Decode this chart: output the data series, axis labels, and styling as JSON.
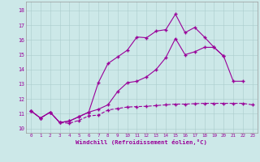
{
  "xlabel": "Windchill (Refroidissement éolien,°C)",
  "background_color": "#cce8e8",
  "line_color": "#990099",
  "xlim": [
    -0.5,
    23.5
  ],
  "ylim": [
    9.7,
    18.6
  ],
  "yticks": [
    10,
    11,
    12,
    13,
    14,
    15,
    16,
    17,
    18
  ],
  "xticks": [
    0,
    1,
    2,
    3,
    4,
    5,
    6,
    7,
    8,
    9,
    10,
    11,
    12,
    13,
    14,
    15,
    16,
    17,
    18,
    19,
    20,
    21,
    22,
    23
  ],
  "series1_x": [
    0,
    1,
    2,
    3,
    4,
    5,
    6,
    7,
    8,
    9,
    10,
    11,
    12,
    13,
    14,
    15,
    16,
    17,
    18,
    19,
    20,
    21,
    22,
    23
  ],
  "series1_y": [
    11.2,
    10.7,
    11.1,
    10.4,
    10.35,
    10.55,
    10.85,
    10.9,
    11.25,
    11.35,
    11.45,
    11.48,
    11.5,
    11.55,
    11.6,
    11.65,
    11.65,
    11.68,
    11.7,
    11.7,
    11.7,
    11.7,
    11.7,
    11.6
  ],
  "series2_x": [
    0,
    1,
    2,
    3,
    4,
    5,
    6,
    7,
    8,
    9,
    10,
    11,
    12,
    13,
    14,
    15,
    16,
    17,
    18,
    19,
    20,
    21,
    22
  ],
  "series2_y": [
    11.2,
    10.7,
    11.1,
    10.4,
    10.5,
    10.8,
    11.1,
    13.1,
    14.4,
    14.85,
    15.3,
    16.2,
    16.15,
    16.6,
    16.7,
    17.75,
    16.5,
    16.85,
    16.2,
    15.5,
    14.9,
    13.2,
    13.2
  ],
  "series3_x": [
    0,
    1,
    2,
    3,
    4,
    5,
    6,
    7,
    8,
    9,
    10,
    11,
    12,
    13,
    14,
    15,
    16,
    17,
    18,
    19,
    20
  ],
  "series3_y": [
    11.2,
    10.7,
    11.1,
    10.4,
    10.5,
    10.8,
    11.1,
    11.3,
    11.6,
    12.5,
    13.1,
    13.2,
    13.5,
    14.0,
    14.8,
    16.1,
    15.0,
    15.2,
    15.5,
    15.5,
    14.9
  ]
}
